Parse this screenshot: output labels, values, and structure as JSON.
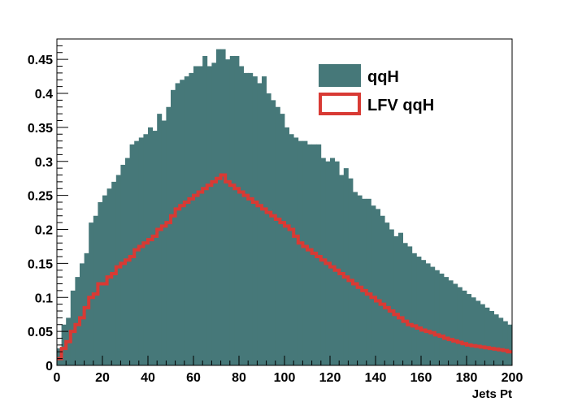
{
  "chart_data": {
    "type": "bar",
    "title": "",
    "xlabel": "Jets Pt",
    "ylabel": "",
    "xlim": [
      0,
      200
    ],
    "ylim": [
      0,
      0.48
    ],
    "x_ticks": [
      "0",
      "20",
      "40",
      "60",
      "80",
      "100",
      "120",
      "140",
      "160",
      "180",
      "200"
    ],
    "y_ticks": [
      "0",
      "0.05",
      "0.1",
      "0.15",
      "0.2",
      "0.25",
      "0.3",
      "0.35",
      "0.4",
      "0.45"
    ],
    "bin_width": 2,
    "grid": false,
    "legend_position": "top-right",
    "series": [
      {
        "name": "qqH",
        "style": "filled",
        "color": "#467879",
        "values": [
          0.025,
          0.06,
          0.07,
          0.11,
          0.13,
          0.15,
          0.165,
          0.21,
          0.22,
          0.24,
          0.25,
          0.26,
          0.27,
          0.28,
          0.295,
          0.305,
          0.325,
          0.33,
          0.335,
          0.34,
          0.35,
          0.345,
          0.37,
          0.36,
          0.38,
          0.405,
          0.415,
          0.42,
          0.425,
          0.43,
          0.44,
          0.44,
          0.455,
          0.44,
          0.445,
          0.465,
          0.465,
          0.45,
          0.455,
          0.455,
          0.44,
          0.43,
          0.43,
          0.425,
          0.415,
          0.425,
          0.4,
          0.39,
          0.38,
          0.37,
          0.35,
          0.34,
          0.335,
          0.33,
          0.33,
          0.325,
          0.325,
          0.325,
          0.305,
          0.3,
          0.305,
          0.3,
          0.28,
          0.29,
          0.275,
          0.255,
          0.25,
          0.245,
          0.245,
          0.235,
          0.23,
          0.22,
          0.21,
          0.2,
          0.19,
          0.195,
          0.18,
          0.175,
          0.165,
          0.16,
          0.155,
          0.15,
          0.145,
          0.14,
          0.135,
          0.13,
          0.125,
          0.12,
          0.115,
          0.11,
          0.105,
          0.1,
          0.095,
          0.09,
          0.085,
          0.08,
          0.075,
          0.07,
          0.065,
          0.06
        ]
      },
      {
        "name": "LFV qqH",
        "style": "outline",
        "color": "#d83a34",
        "values": [
          0.01,
          0.025,
          0.035,
          0.05,
          0.06,
          0.07,
          0.085,
          0.1,
          0.105,
          0.12,
          0.12,
          0.13,
          0.135,
          0.145,
          0.15,
          0.155,
          0.16,
          0.17,
          0.175,
          0.18,
          0.185,
          0.19,
          0.2,
          0.205,
          0.21,
          0.22,
          0.23,
          0.235,
          0.24,
          0.245,
          0.25,
          0.255,
          0.26,
          0.265,
          0.27,
          0.275,
          0.28,
          0.27,
          0.265,
          0.26,
          0.255,
          0.25,
          0.245,
          0.24,
          0.235,
          0.23,
          0.225,
          0.22,
          0.215,
          0.21,
          0.205,
          0.2,
          0.19,
          0.18,
          0.175,
          0.17,
          0.165,
          0.16,
          0.155,
          0.15,
          0.145,
          0.14,
          0.135,
          0.13,
          0.125,
          0.12,
          0.115,
          0.11,
          0.105,
          0.1,
          0.095,
          0.09,
          0.085,
          0.08,
          0.075,
          0.07,
          0.065,
          0.06,
          0.058,
          0.055,
          0.052,
          0.05,
          0.048,
          0.045,
          0.043,
          0.04,
          0.038,
          0.036,
          0.034,
          0.032,
          0.03,
          0.029,
          0.028,
          0.027,
          0.026,
          0.025,
          0.024,
          0.023,
          0.022,
          0.02
        ]
      }
    ]
  }
}
